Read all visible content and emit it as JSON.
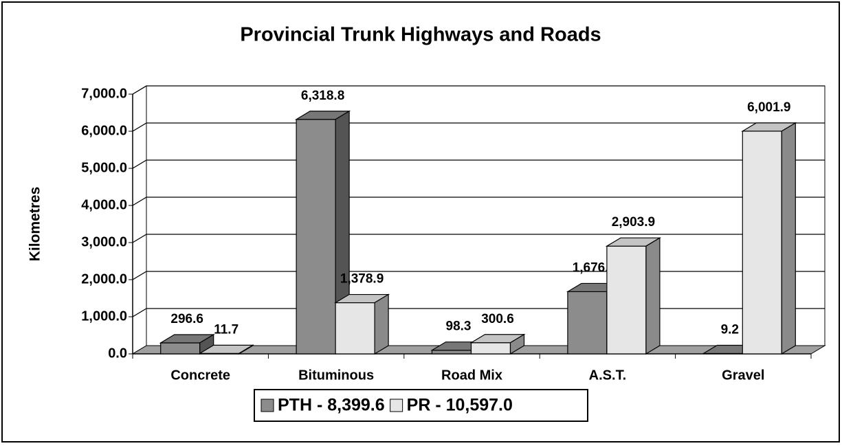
{
  "chart_data": {
    "type": "bar3d",
    "title": "Provincial Trunk Highways and Roads",
    "y_label": "Kilometres",
    "categories": [
      "Concrete",
      "Bituminous",
      "Road Mix",
      "A.S.T.",
      "Gravel"
    ],
    "series": [
      {
        "name": "PTH - 8,399.6",
        "color": "#8c8c8c",
        "values": [
          296.6,
          6318.8,
          98.3,
          1676.7,
          9.2
        ],
        "value_labels": [
          "296.6",
          "6,318.8",
          "98.3",
          "1,676.7",
          "9.2"
        ]
      },
      {
        "name": "PR - 10,597.0",
        "color": "#e6e6e6",
        "values": [
          11.7,
          1378.9,
          300.6,
          2903.9,
          6001.9
        ],
        "value_labels": [
          "11.7",
          "1,378.9",
          "300.6",
          "2,903.9",
          "6,001.9"
        ]
      }
    ],
    "ylim": [
      0,
      7000
    ],
    "yticks": [
      {
        "value": 0,
        "label": "0.0"
      },
      {
        "value": 1000,
        "label": "1,000.0"
      },
      {
        "value": 2000,
        "label": "2,000.0"
      },
      {
        "value": 3000,
        "label": "3,000.0"
      },
      {
        "value": 4000,
        "label": "4,000.0"
      },
      {
        "value": 5000,
        "label": "5,000.0"
      },
      {
        "value": 6000,
        "label": "6,000.0"
      },
      {
        "value": 7000,
        "label": "7,000.0"
      }
    ],
    "grid": true,
    "legend": "bottom"
  }
}
